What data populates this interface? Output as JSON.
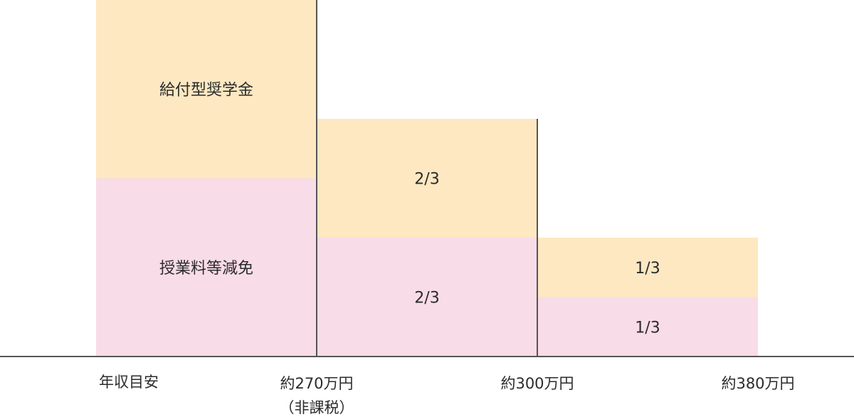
{
  "chart_data": {
    "type": "bar",
    "stacked": true,
    "axis_title": "年収目安",
    "categories": [
      {
        "boundary_label": "約270万円",
        "boundary_sublabel": "（非課税）"
      },
      {
        "boundary_label": "約300万円",
        "boundary_sublabel": ""
      },
      {
        "boundary_label": "約380万円",
        "boundary_sublabel": ""
      }
    ],
    "series": [
      {
        "name": "授業料等減免",
        "color": "#f8dce7",
        "values": [
          1,
          0.6667,
          0.3333
        ],
        "labels": [
          "授業料等減免",
          "2/3",
          "1/3"
        ]
      },
      {
        "name": "給付型奨学金",
        "color": "#fde8c2",
        "values": [
          1,
          0.6667,
          0.3333
        ],
        "labels": [
          "給付型奨学金",
          "2/3",
          "1/3"
        ]
      }
    ],
    "ylim": [
      0,
      2
    ],
    "grid": false,
    "legend": "none"
  }
}
